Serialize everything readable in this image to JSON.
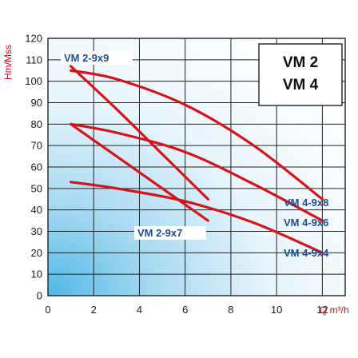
{
  "chart_data": {
    "type": "line",
    "title": "",
    "xlabel": "Q m³/h",
    "ylabel": "Hm/Mss",
    "xlim": [
      0,
      12
    ],
    "ylim": [
      0,
      120
    ],
    "x_ticks": [
      0,
      2,
      4,
      6,
      8,
      10,
      12
    ],
    "y_ticks": [
      0,
      10,
      20,
      30,
      40,
      50,
      60,
      70,
      80,
      90,
      100,
      110,
      120
    ],
    "grid": true,
    "box_lines": [
      "VM 2",
      "VM 4"
    ],
    "colors": {
      "curve": "#d4141c",
      "label": "#1f4e8c",
      "grid": "#222222",
      "axis_label": "#c0101c"
    },
    "series": [
      {
        "name": "VM 2-9x9",
        "x": [
          1,
          3,
          5,
          7
        ],
        "y": [
          107,
          87,
          66,
          45
        ]
      },
      {
        "name": "VM 2-9x7",
        "x": [
          1,
          3,
          5,
          7
        ],
        "y": [
          80,
          65,
          50,
          35
        ]
      },
      {
        "name": "VM 4-9x8",
        "x": [
          1,
          3,
          6,
          9,
          12
        ],
        "y": [
          105,
          101,
          89,
          70,
          45
        ]
      },
      {
        "name": "VM 4-9x6",
        "x": [
          1,
          3,
          6,
          9,
          12
        ],
        "y": [
          80,
          76,
          67,
          52,
          35
        ]
      },
      {
        "name": "VM 4-9x4",
        "x": [
          1,
          3,
          6,
          9,
          12
        ],
        "y": [
          53,
          50,
          44,
          34,
          20
        ]
      }
    ]
  }
}
